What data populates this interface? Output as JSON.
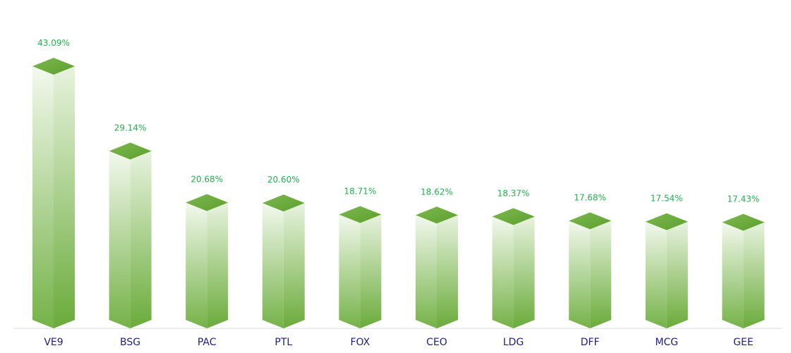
{
  "chart_data": {
    "type": "bar",
    "style": "3d-column",
    "categories": [
      "VE9",
      "BSG",
      "PAC",
      "PTL",
      "FOX",
      "CEO",
      "LDG",
      "DFF",
      "MCG",
      "GEE"
    ],
    "values": [
      43.09,
      29.14,
      20.68,
      20.6,
      18.71,
      18.62,
      18.37,
      17.68,
      17.54,
      17.43
    ],
    "value_labels": [
      "43.09%",
      "29.14%",
      "20.68%",
      "20.60%",
      "18.71%",
      "18.62%",
      "18.37%",
      "17.68%",
      "17.54%",
      "17.43%"
    ],
    "unit": "%",
    "ylim": [
      0,
      43.09
    ],
    "grid": false,
    "legend": "none",
    "title": "",
    "xlabel": "",
    "ylabel": ""
  },
  "colors": {
    "bar_top": "#5d9f2c",
    "bar_top_light": "#7cb850",
    "bar_front_light": "#f3f9ee",
    "bar_front_dark": "#75b248",
    "bar_side_light": "#e8f3df",
    "bar_side_dark": "#6aab3a",
    "value_label": "#22b14c",
    "category_label": "#1f1f7a",
    "baseline": "#d9d9d9"
  }
}
